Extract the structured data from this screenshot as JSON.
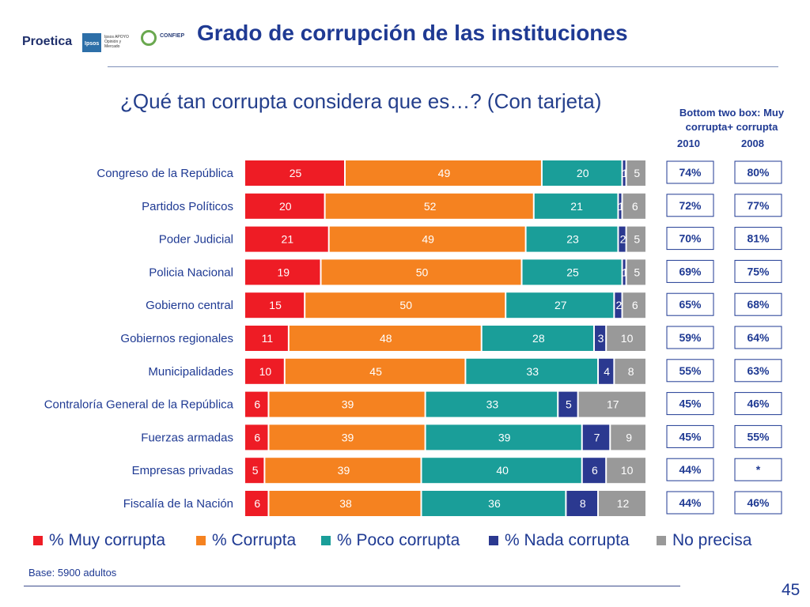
{
  "header": {
    "title": "Grado de corrupción de las instituciones",
    "logos": {
      "proetica": "Proetica",
      "ipsos": "Ipsos",
      "ipsos_sub": "Ipsos APOYO Opinión y Mercado",
      "confiep": "CONFIEP"
    }
  },
  "question": "¿Qué tan corrupta considera que es…? (Con tarjeta)",
  "bottom_two_box": {
    "header_line1": "Bottom two box: Muy",
    "header_line2": "corrupta+ corrupta",
    "year_a": "2010",
    "year_b": "2008"
  },
  "legend": {
    "muy_corrupta": "% Muy corrupta",
    "corrupta": "% Corrupta",
    "poco_corrupta": "% Poco corrupta",
    "nada_corrupta": "% Nada corrupta",
    "no_precisa": "No precisa"
  },
  "colors": {
    "muy_corrupta": "#ee1c25",
    "corrupta": "#f58220",
    "poco_corrupta": "#1a9e99",
    "nada_corrupta": "#2b3990",
    "no_precisa": "#999999",
    "box_border": "#1f3a93",
    "text": "#1f3a93"
  },
  "footer": {
    "base": "Base: 5900 adultos",
    "page_number": "45"
  },
  "chart_data": {
    "type": "bar",
    "orientation": "horizontal",
    "stacked": true,
    "title": "¿Qué tan corrupta considera que es…? (Con tarjeta)",
    "categories": [
      "Congreso de la República",
      "Partidos Políticos",
      "Poder Judicial",
      "Policia Nacional",
      "Gobierno central",
      "Gobiernos regionales",
      "Municipalidades",
      "Contraloría General de la República",
      "Fuerzas armadas",
      "Empresas privadas",
      "Fiscalía de la Nación"
    ],
    "series": [
      {
        "name": "% Muy corrupta",
        "key": "muy_corrupta",
        "values": [
          25,
          20,
          21,
          19,
          15,
          11,
          10,
          6,
          6,
          5,
          6
        ]
      },
      {
        "name": "% Corrupta",
        "key": "corrupta",
        "values": [
          49,
          52,
          49,
          50,
          50,
          48,
          45,
          39,
          39,
          39,
          38
        ]
      },
      {
        "name": "% Poco corrupta",
        "key": "poco_corrupta",
        "values": [
          20,
          21,
          23,
          25,
          27,
          28,
          33,
          33,
          39,
          40,
          36
        ]
      },
      {
        "name": "% Nada corrupta",
        "key": "nada_corrupta",
        "values": [
          1,
          1,
          2,
          1,
          2,
          3,
          4,
          5,
          7,
          6,
          8
        ]
      },
      {
        "name": "No precisa",
        "key": "no_precisa",
        "values": [
          5,
          6,
          5,
          5,
          6,
          10,
          8,
          17,
          9,
          10,
          12
        ]
      }
    ],
    "bottom_two_box_2010": [
      "74%",
      "72%",
      "70%",
      "69%",
      "65%",
      "59%",
      "55%",
      "45%",
      "45%",
      "44%",
      "44%"
    ],
    "bottom_two_box_2008": [
      "80%",
      "77%",
      "81%",
      "75%",
      "68%",
      "64%",
      "63%",
      "46%",
      "55%",
      "*",
      "46%"
    ],
    "xlim": [
      0,
      100
    ],
    "legend_position": "bottom"
  }
}
